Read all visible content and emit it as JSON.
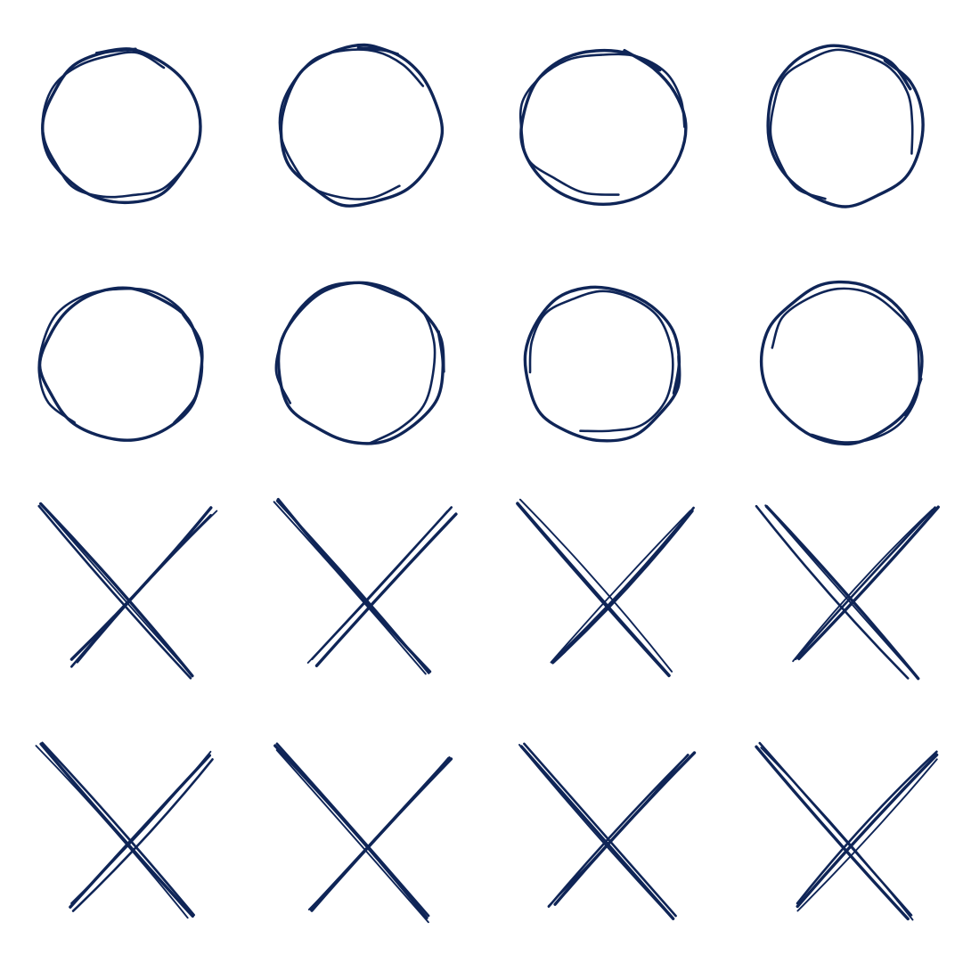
{
  "ink_color": "#0f2557",
  "background_color": "#ffffff",
  "rows": [
    {
      "icon": "hand-drawn-circle-icon",
      "count": 4
    },
    {
      "icon": "hand-drawn-circle-icon",
      "count": 4
    },
    {
      "icon": "hand-drawn-cross-icon",
      "count": 4
    },
    {
      "icon": "hand-drawn-cross-icon",
      "count": 4
    }
  ]
}
